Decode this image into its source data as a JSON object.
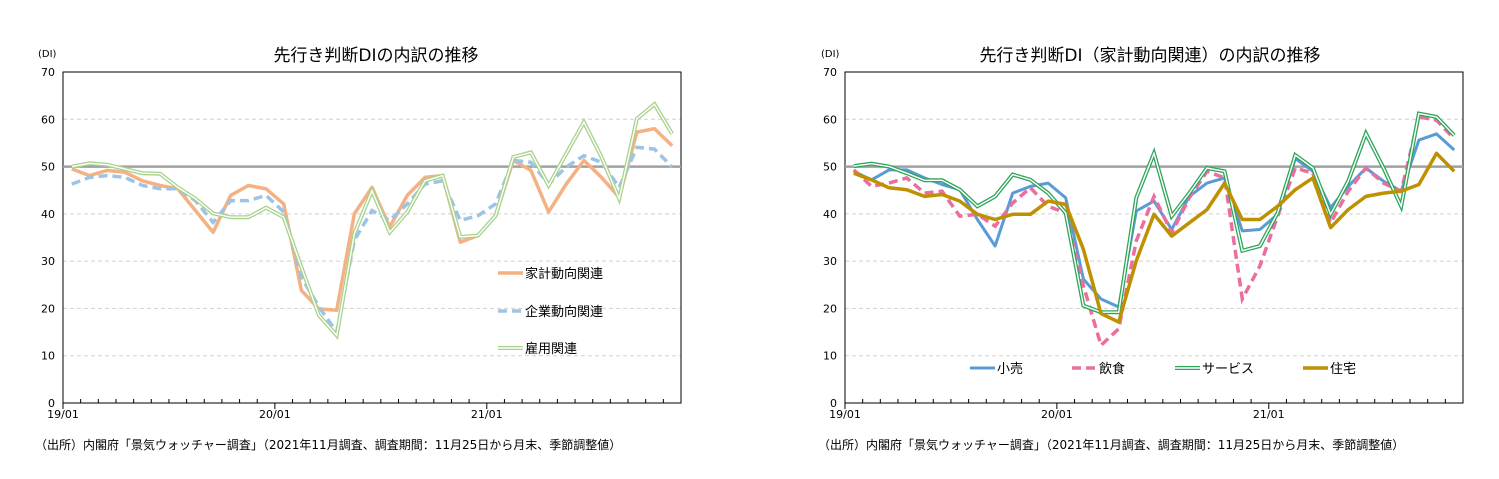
{
  "charts": [
    {
      "title": "先行き判断DIの内訳の推移",
      "unit": "(DI)",
      "source": "（出所）内閣府「景気ウォッチャー調査」（2021年11月調査、調査期間：11月25日から月末、季節調整値）"
    },
    {
      "title": "先行き判断DI（家計動向関連）の内訳の推移",
      "unit": "(DI)",
      "source": "（出所）内閣府「景気ウォッチャー調査」（2021年11月調査、調査期間：11月25日から月末、季節調整値）"
    }
  ],
  "chart_data": [
    {
      "type": "line",
      "title": "先行き判断DIの内訳の推移",
      "ylabel": "(DI)",
      "ylim": [
        0,
        70
      ],
      "yticks": [
        0,
        10,
        20,
        30,
        40,
        50,
        60,
        70
      ],
      "x_start": "2019-01",
      "x_end": "2021-11",
      "xtick_labels": [
        "19/01",
        "20/01",
        "21/01"
      ],
      "reference_line": 50,
      "grid": "horizontal dashed",
      "legend": "right-middle",
      "series": [
        {
          "name": "家計動向関連",
          "color": "#f4b183",
          "style": "solid-thick",
          "values": [
            49.5,
            48.1,
            49.2,
            48.8,
            47.0,
            46.0,
            45.3,
            40.7,
            36.1,
            43.9,
            46.0,
            45.3,
            42.1,
            23.8,
            19.9,
            19.6,
            40.0,
            45.6,
            37.2,
            43.9,
            47.7,
            48.1,
            34.0,
            35.4,
            39.6,
            51.3,
            49.2,
            40.4,
            46.3,
            51.3,
            47.7,
            43.5,
            57.3,
            58.0,
            54.4
          ]
        },
        {
          "name": "企業動向関連",
          "color": "#9dc3e6",
          "style": "dashed",
          "values": [
            46.3,
            47.7,
            48.1,
            47.7,
            46.0,
            45.3,
            45.3,
            42.8,
            38.2,
            42.8,
            42.8,
            43.9,
            40.4,
            26.6,
            20.3,
            15.0,
            34.4,
            40.7,
            38.6,
            42.1,
            46.3,
            47.0,
            38.6,
            39.6,
            42.1,
            51.3,
            50.9,
            46.3,
            49.9,
            52.3,
            50.9,
            45.6,
            54.1,
            53.7,
            49.9
          ]
        },
        {
          "name": "雇用関連",
          "color": "#a9d18e",
          "style": "double",
          "values": [
            50.0,
            50.7,
            50.4,
            49.5,
            48.6,
            48.5,
            45.6,
            43.2,
            40.1,
            39.3,
            39.3,
            41.3,
            39.3,
            28.7,
            18.5,
            14.3,
            35.8,
            44.9,
            36.1,
            40.4,
            47.0,
            48.1,
            35.1,
            35.4,
            39.6,
            52.0,
            53.0,
            46.0,
            52.7,
            59.4,
            52.0,
            43.2,
            60.1,
            63.2,
            56.9
          ]
        }
      ]
    },
    {
      "type": "line",
      "title": "先行き判断DI（家計動向関連）の内訳の推移",
      "ylabel": "(DI)",
      "ylim": [
        0,
        70
      ],
      "yticks": [
        0,
        10,
        20,
        30,
        40,
        50,
        60,
        70
      ],
      "x_start": "2019-01",
      "x_end": "2021-11",
      "xtick_labels": [
        "19/01",
        "20/01",
        "21/01"
      ],
      "reference_line": 50,
      "grid": "horizontal dashed",
      "legend": "bottom",
      "series": [
        {
          "name": "小売",
          "color": "#5b9bd5",
          "style": "solid",
          "values": [
            49.0,
            47.2,
            49.3,
            49.3,
            47.6,
            46.2,
            45.1,
            38.8,
            33.2,
            44.4,
            45.8,
            46.5,
            43.4,
            26.2,
            22.0,
            20.3,
            40.6,
            42.7,
            36.7,
            43.7,
            46.5,
            47.6,
            36.4,
            36.7,
            39.9,
            51.7,
            49.0,
            41.3,
            45.8,
            49.7,
            46.9,
            44.8,
            55.6,
            56.9,
            53.5
          ]
        },
        {
          "name": "飲食",
          "color": "#e96fa0",
          "style": "dashed",
          "values": [
            49.3,
            45.8,
            46.5,
            47.6,
            44.4,
            44.8,
            39.5,
            39.9,
            37.4,
            42.3,
            45.5,
            41.6,
            40.2,
            24.8,
            12.2,
            15.7,
            34.3,
            43.7,
            36.0,
            43.4,
            49.0,
            47.6,
            22.0,
            29.0,
            39.5,
            49.7,
            48.6,
            38.1,
            44.8,
            49.7,
            46.5,
            44.8,
            60.5,
            59.8,
            55.9
          ]
        },
        {
          "name": "サービス",
          "color": "#2ea55a",
          "style": "double",
          "values": [
            50.1,
            50.6,
            50.0,
            48.6,
            47.1,
            47.1,
            45.1,
            41.6,
            43.7,
            48.3,
            47.2,
            44.4,
            40.2,
            20.6,
            19.2,
            19.2,
            43.4,
            52.8,
            39.5,
            44.4,
            49.7,
            49.0,
            32.2,
            33.2,
            40.2,
            52.4,
            49.7,
            39.9,
            46.9,
            57.0,
            49.7,
            41.6,
            61.2,
            60.5,
            56.6
          ]
        },
        {
          "name": "住宅",
          "color": "#bf9000",
          "style": "solid-thick",
          "values": [
            48.6,
            47.2,
            45.5,
            45.1,
            43.7,
            44.1,
            42.7,
            39.9,
            38.8,
            39.9,
            39.9,
            42.7,
            42.0,
            32.5,
            18.9,
            17.1,
            30.1,
            39.9,
            35.3,
            38.1,
            40.9,
            46.5,
            38.8,
            38.8,
            41.6,
            45.1,
            47.6,
            37.1,
            40.9,
            43.7,
            44.4,
            44.8,
            46.2,
            52.8,
            49.0
          ]
        }
      ]
    }
  ]
}
